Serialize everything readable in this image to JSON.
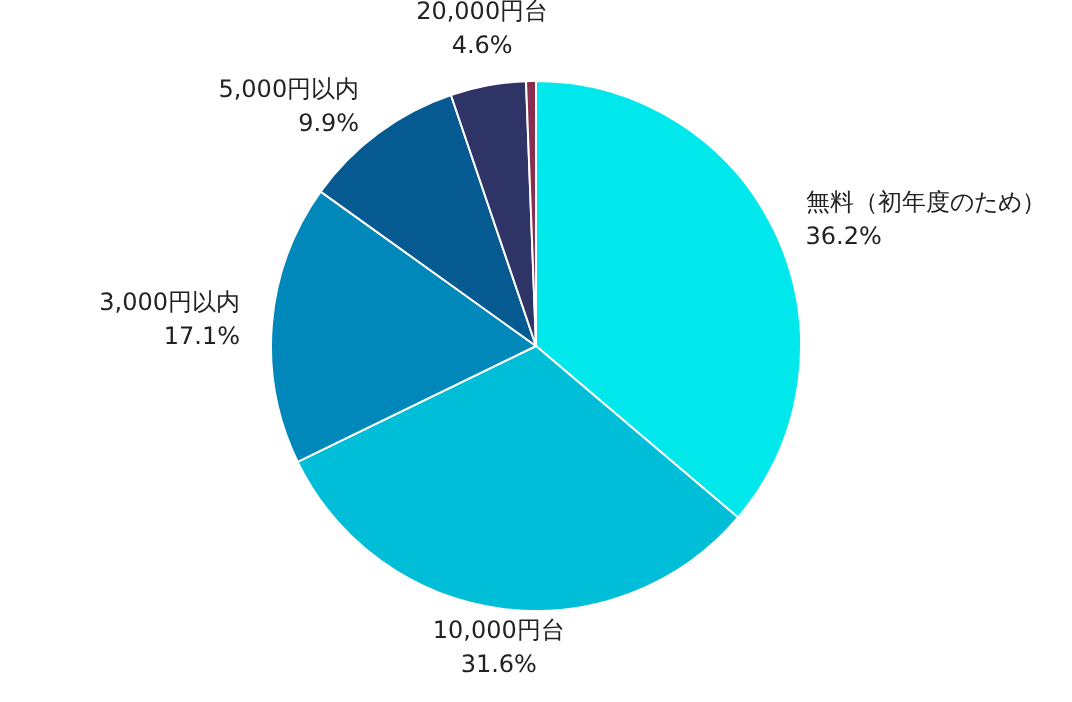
{
  "chart_data": {
    "type": "pie",
    "categories": [
      "無料（初年度のため）",
      "10,000円台",
      "3,000円以内",
      "5,000円以内",
      "20,000円台",
      null
    ],
    "values": [
      36.2,
      31.6,
      17.1,
      9.9,
      4.6,
      0.6
    ],
    "value_labels": [
      "36.2%",
      "31.6%",
      "17.1%",
      "9.9%",
      "4.6%",
      null
    ],
    "colors": [
      "#00e8ec",
      "#00bdd8",
      "#0088ba",
      "#065a92",
      "#2e3466",
      "#8a2d4e"
    ],
    "legend": false
  }
}
